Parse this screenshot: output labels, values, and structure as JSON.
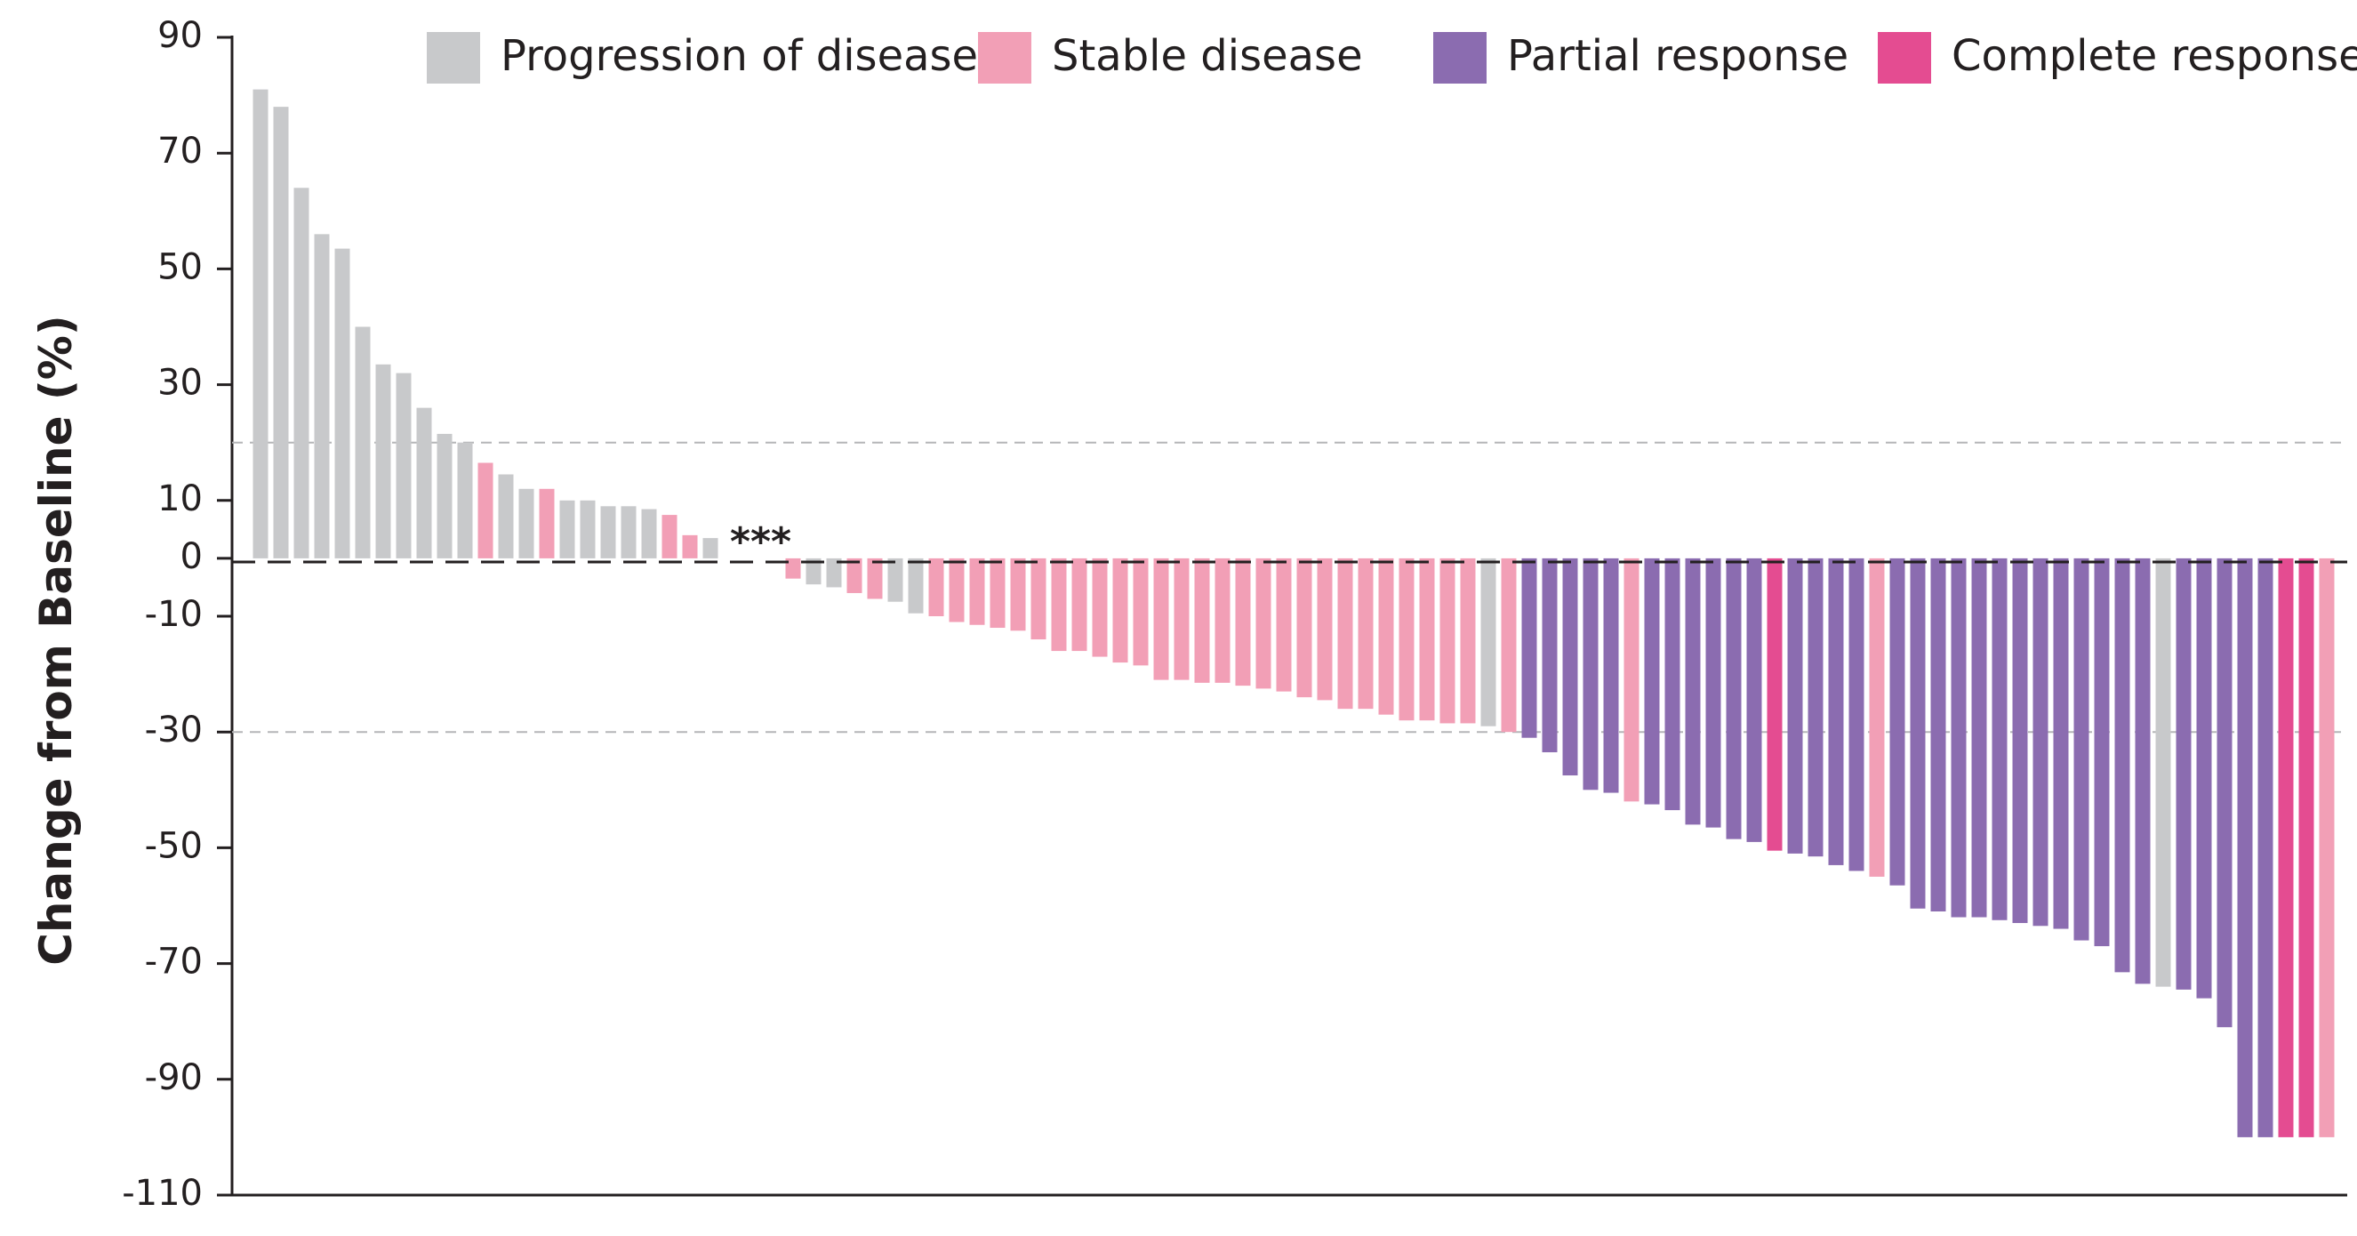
{
  "chart_data": {
    "type": "bar",
    "title": "",
    "xlabel": "",
    "ylabel": "Change from Baseline (%)",
    "ylim": [
      -110,
      90
    ],
    "yticks": [
      90,
      70,
      50,
      30,
      10,
      0,
      -10,
      -30,
      -50,
      -70,
      -90,
      -110
    ],
    "reference_lines": [
      20,
      -30
    ],
    "legend": {
      "placement": "top"
    },
    "series": [
      {
        "name": "Progression of disease",
        "color": "#c8c9cb"
      },
      {
        "name": "Stable disease",
        "color": "#f29fb6"
      },
      {
        "name": "Partial response",
        "color": "#8b6cb0"
      },
      {
        "name": "Complete response",
        "color": "#e44c91"
      }
    ],
    "annotation": {
      "text": "***",
      "after_bar_index": 22
    },
    "bars": [
      {
        "value": 81,
        "series": "Progression of disease"
      },
      {
        "value": 78,
        "series": "Progression of disease"
      },
      {
        "value": 64,
        "series": "Progression of disease"
      },
      {
        "value": 56,
        "series": "Progression of disease"
      },
      {
        "value": 53.5,
        "series": "Progression of disease"
      },
      {
        "value": 40,
        "series": "Progression of disease"
      },
      {
        "value": 33.5,
        "series": "Progression of disease"
      },
      {
        "value": 32,
        "series": "Progression of disease"
      },
      {
        "value": 26,
        "series": "Progression of disease"
      },
      {
        "value": 21.5,
        "series": "Progression of disease"
      },
      {
        "value": 20,
        "series": "Progression of disease"
      },
      {
        "value": 16.5,
        "series": "Stable disease"
      },
      {
        "value": 14.5,
        "series": "Progression of disease"
      },
      {
        "value": 12,
        "series": "Progression of disease"
      },
      {
        "value": 12,
        "series": "Stable disease"
      },
      {
        "value": 10,
        "series": "Progression of disease"
      },
      {
        "value": 10,
        "series": "Progression of disease"
      },
      {
        "value": 9,
        "series": "Progression of disease"
      },
      {
        "value": 9,
        "series": "Progression of disease"
      },
      {
        "value": 8.5,
        "series": "Progression of disease"
      },
      {
        "value": 7.5,
        "series": "Stable disease"
      },
      {
        "value": 4,
        "series": "Stable disease"
      },
      {
        "value": 3.5,
        "series": "Progression of disease"
      },
      {
        "value": -3.5,
        "series": "Stable disease"
      },
      {
        "value": -4.5,
        "series": "Progression of disease"
      },
      {
        "value": -5,
        "series": "Progression of disease"
      },
      {
        "value": -6,
        "series": "Stable disease"
      },
      {
        "value": -7,
        "series": "Stable disease"
      },
      {
        "value": -7.5,
        "series": "Progression of disease"
      },
      {
        "value": -9.5,
        "series": "Progression of disease"
      },
      {
        "value": -10,
        "series": "Stable disease"
      },
      {
        "value": -11,
        "series": "Stable disease"
      },
      {
        "value": -11.5,
        "series": "Stable disease"
      },
      {
        "value": -12,
        "series": "Stable disease"
      },
      {
        "value": -12.5,
        "series": "Stable disease"
      },
      {
        "value": -14,
        "series": "Stable disease"
      },
      {
        "value": -16,
        "series": "Stable disease"
      },
      {
        "value": -16,
        "series": "Stable disease"
      },
      {
        "value": -17,
        "series": "Stable disease"
      },
      {
        "value": -18,
        "series": "Stable disease"
      },
      {
        "value": -18.5,
        "series": "Stable disease"
      },
      {
        "value": -21,
        "series": "Stable disease"
      },
      {
        "value": -21,
        "series": "Stable disease"
      },
      {
        "value": -21.5,
        "series": "Stable disease"
      },
      {
        "value": -21.5,
        "series": "Stable disease"
      },
      {
        "value": -22,
        "series": "Stable disease"
      },
      {
        "value": -22.5,
        "series": "Stable disease"
      },
      {
        "value": -23,
        "series": "Stable disease"
      },
      {
        "value": -24,
        "series": "Stable disease"
      },
      {
        "value": -24.5,
        "series": "Stable disease"
      },
      {
        "value": -26,
        "series": "Stable disease"
      },
      {
        "value": -26,
        "series": "Stable disease"
      },
      {
        "value": -27,
        "series": "Stable disease"
      },
      {
        "value": -28,
        "series": "Stable disease"
      },
      {
        "value": -28,
        "series": "Stable disease"
      },
      {
        "value": -28.5,
        "series": "Stable disease"
      },
      {
        "value": -28.5,
        "series": "Stable disease"
      },
      {
        "value": -29,
        "series": "Progression of disease"
      },
      {
        "value": -30,
        "series": "Stable disease"
      },
      {
        "value": -31,
        "series": "Partial response"
      },
      {
        "value": -33.5,
        "series": "Partial response"
      },
      {
        "value": -37.5,
        "series": "Partial response"
      },
      {
        "value": -40,
        "series": "Partial response"
      },
      {
        "value": -40.5,
        "series": "Partial response"
      },
      {
        "value": -42,
        "series": "Stable disease"
      },
      {
        "value": -42.5,
        "series": "Partial response"
      },
      {
        "value": -43.5,
        "series": "Partial response"
      },
      {
        "value": -46,
        "series": "Partial response"
      },
      {
        "value": -46.5,
        "series": "Partial response"
      },
      {
        "value": -48.5,
        "series": "Partial response"
      },
      {
        "value": -49,
        "series": "Partial response"
      },
      {
        "value": -50.5,
        "series": "Complete response"
      },
      {
        "value": -51,
        "series": "Partial response"
      },
      {
        "value": -51.5,
        "series": "Partial response"
      },
      {
        "value": -53,
        "series": "Partial response"
      },
      {
        "value": -54,
        "series": "Partial response"
      },
      {
        "value": -55,
        "series": "Stable disease"
      },
      {
        "value": -56.5,
        "series": "Partial response"
      },
      {
        "value": -60.5,
        "series": "Partial response"
      },
      {
        "value": -61,
        "series": "Partial response"
      },
      {
        "value": -62,
        "series": "Partial response"
      },
      {
        "value": -62,
        "series": "Partial response"
      },
      {
        "value": -62.5,
        "series": "Partial response"
      },
      {
        "value": -63,
        "series": "Partial response"
      },
      {
        "value": -63.5,
        "series": "Partial response"
      },
      {
        "value": -64,
        "series": "Partial response"
      },
      {
        "value": -66,
        "series": "Partial response"
      },
      {
        "value": -67,
        "series": "Partial response"
      },
      {
        "value": -71.5,
        "series": "Partial response"
      },
      {
        "value": -73.5,
        "series": "Partial response"
      },
      {
        "value": -74,
        "series": "Progression of disease"
      },
      {
        "value": -74.5,
        "series": "Partial response"
      },
      {
        "value": -76,
        "series": "Partial response"
      },
      {
        "value": -81,
        "series": "Partial response"
      },
      {
        "value": -100,
        "series": "Partial response"
      },
      {
        "value": -100,
        "series": "Partial response"
      },
      {
        "value": -100,
        "series": "Complete response"
      },
      {
        "value": -100,
        "series": "Complete response"
      },
      {
        "value": -100,
        "series": "Stable disease"
      }
    ]
  }
}
